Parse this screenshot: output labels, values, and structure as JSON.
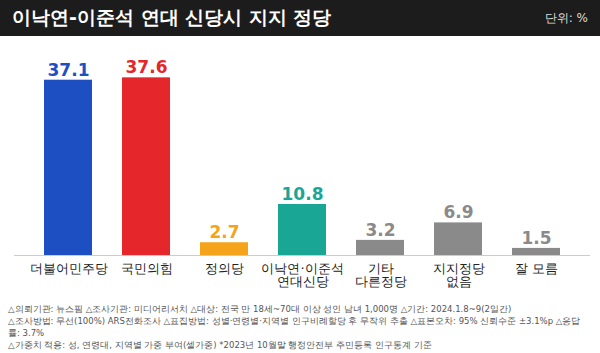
{
  "chart_data": {
    "type": "bar",
    "title": "이낙연-이준석 연대 신당시 지지 정당",
    "subtitle": "단위: %",
    "categories": [
      "더불어민주당",
      "국민의힘",
      "정의당",
      "이낙연·이준석\n연대신당",
      "기타\n다른정당",
      "지지정당\n없음",
      "잘 모름"
    ],
    "values": [
      37.1,
      37.6,
      2.7,
      10.8,
      3.2,
      6.9,
      1.5
    ],
    "colors": [
      "#1e4fc2",
      "#e5262b",
      "#f5a31a",
      "#1aa694",
      "#8a8a8a",
      "#8a8a8a",
      "#8a8a8a"
    ],
    "ylim": [
      0,
      40
    ],
    "data_labels": true,
    "tick_labels": "x",
    "grid": false,
    "notes": [
      "△의뢰기관: 뉴스핌 △조사기관: 미디어리서치 △대상: 전국 만 18세~70대 이상 성인 남녀 1,000명 △기간: 2024.1.8~9(2일간)",
      "△조사방법: 무선(100%) ARS전화조사 △표집방법: 성별·연령별·지역별 인구비례할당 후 무작위 추출 △표본오차: 95% 신뢰수준 ±3.1%p △응답률: 3.7%",
      "△가중치 적용: 성, 연령대, 지역별 가중 부여(셀가중) *2023년 10월말 행정안전부 주민등록 인구통계 기준"
    ]
  }
}
